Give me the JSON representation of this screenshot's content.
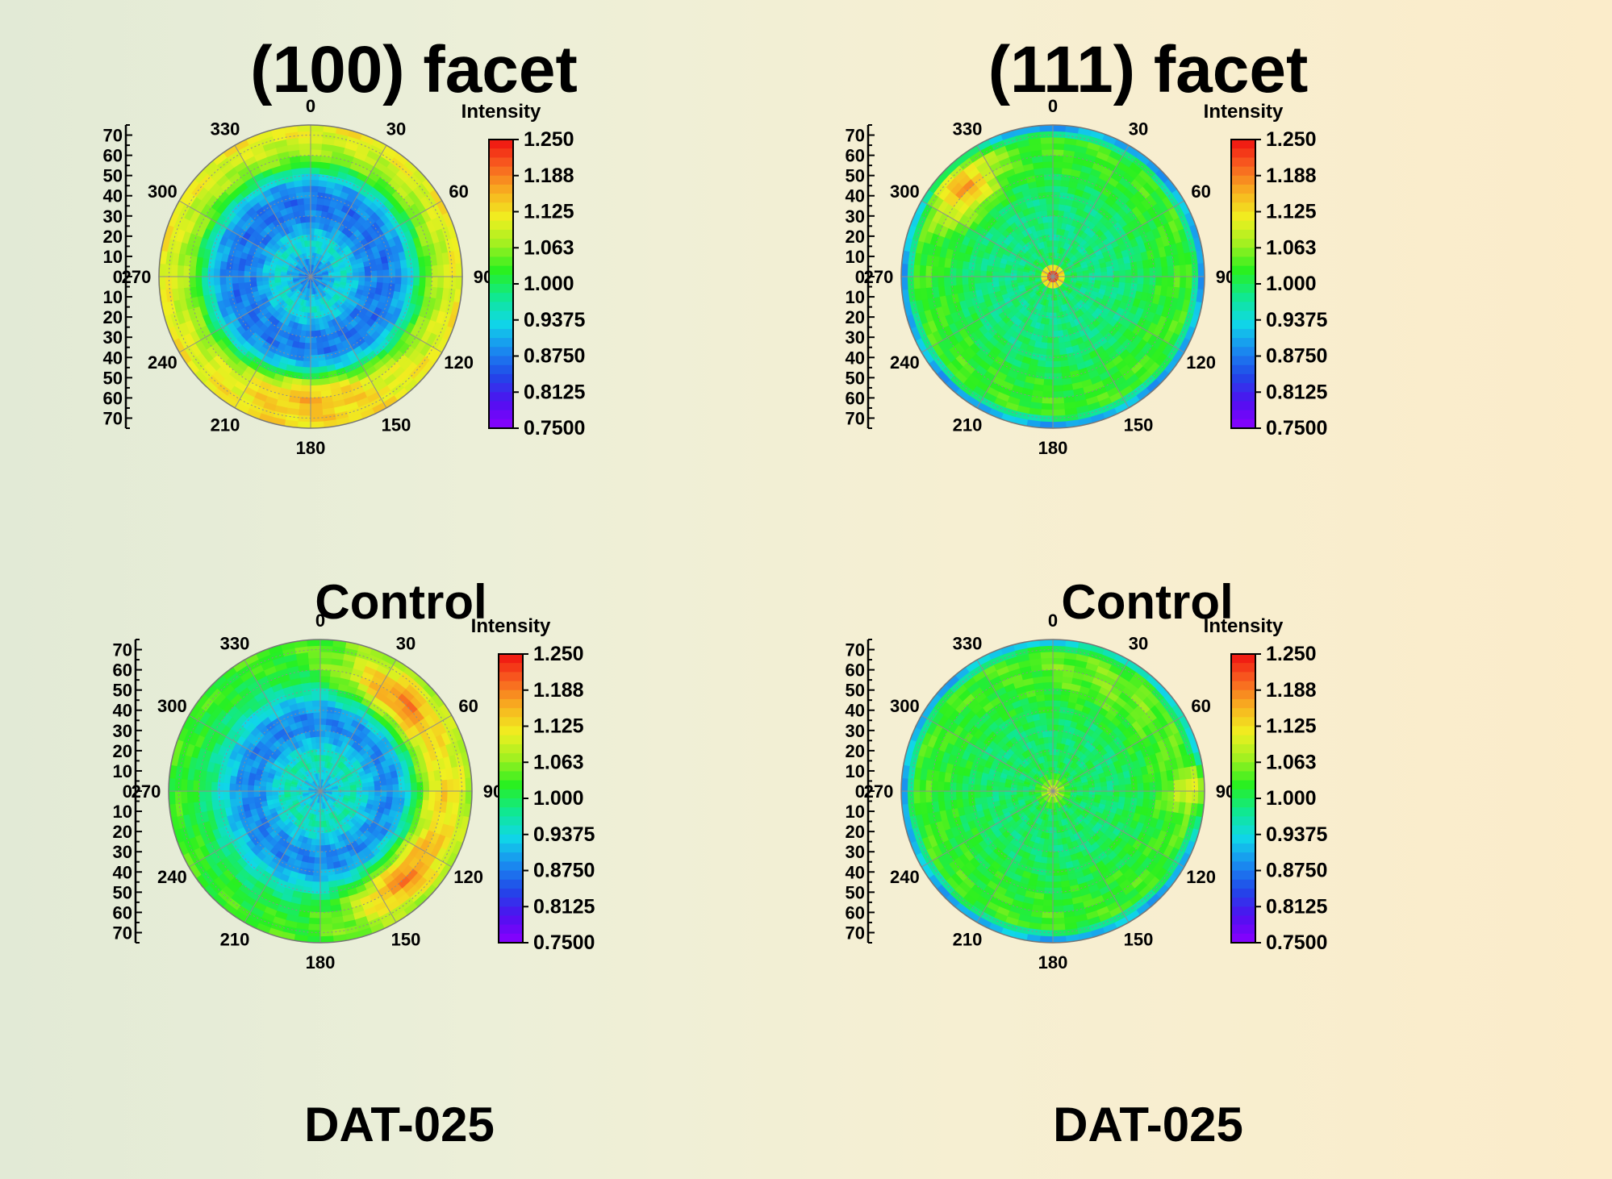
{
  "titles": {
    "left": "(100) facet",
    "right": "(111) facet"
  },
  "colors": {
    "scale": [
      "#8a00ff",
      "#5010f0",
      "#2048e8",
      "#1a8cf0",
      "#10d8e8",
      "#10e890",
      "#28f020",
      "#a0f020",
      "#f0f020",
      "#f8b020",
      "#f86020",
      "#f01010"
    ],
    "grid": "#8e8e8e"
  },
  "chart_data": [
    {
      "type": "heatmap",
      "projection": "polar",
      "facet": "(100) facet",
      "caption": "Control",
      "colorbar_title": "Intensity",
      "colorbar_ticks": [
        "1.250",
        "1.188",
        "1.125",
        "1.063",
        "1.000",
        "0.9375",
        "0.8750",
        "0.8125",
        "0.7500"
      ],
      "clim": [
        0.75,
        1.25
      ],
      "angle_ticks": [
        "0",
        "30",
        "60",
        "90",
        "120",
        "150",
        "180",
        "210",
        "240",
        "270",
        "300",
        "330"
      ],
      "radial_ticks": [
        "70",
        "60",
        "50",
        "40",
        "30",
        "20",
        "10",
        "0",
        "10",
        "20",
        "30",
        "40",
        "50",
        "60",
        "70"
      ],
      "rlim": [
        0,
        75
      ],
      "radial_profile": [
        {
          "r": 0,
          "value": 0.87
        },
        {
          "r": 8,
          "value": 0.9
        },
        {
          "r": 16,
          "value": 0.95
        },
        {
          "r": 22,
          "value": 0.92
        },
        {
          "r": 28,
          "value": 0.88
        },
        {
          "r": 38,
          "value": 0.87
        },
        {
          "r": 46,
          "value": 0.9
        },
        {
          "r": 52,
          "value": 0.97
        },
        {
          "r": 58,
          "value": 1.05
        },
        {
          "r": 66,
          "value": 1.09
        },
        {
          "r": 75,
          "value": 1.12
        }
      ],
      "hot_spots": [
        {
          "theta": 180,
          "r": 62,
          "value": 1.15,
          "width": 28
        }
      ]
    },
    {
      "type": "heatmap",
      "projection": "polar",
      "facet": "(111) facet",
      "caption": "Control",
      "colorbar_title": "Intensity",
      "colorbar_ticks": [
        "1.250",
        "1.188",
        "1.125",
        "1.063",
        "1.000",
        "0.9375",
        "0.8750",
        "0.8125",
        "0.7500"
      ],
      "clim": [
        0.75,
        1.25
      ],
      "angle_ticks": [
        "0",
        "30",
        "60",
        "90",
        "120",
        "150",
        "180",
        "210",
        "240",
        "270",
        "300",
        "330"
      ],
      "radial_ticks": [
        "70",
        "60",
        "50",
        "40",
        "30",
        "20",
        "10",
        "0",
        "10",
        "20",
        "30",
        "40",
        "50",
        "60",
        "70"
      ],
      "rlim": [
        0,
        75
      ],
      "radial_profile": [
        {
          "r": 0,
          "value": 1.24
        },
        {
          "r": 3,
          "value": 1.2
        },
        {
          "r": 7,
          "value": 1.0
        },
        {
          "r": 20,
          "value": 0.98
        },
        {
          "r": 40,
          "value": 0.99
        },
        {
          "r": 55,
          "value": 1.02
        },
        {
          "r": 68,
          "value": 1.03
        },
        {
          "r": 72,
          "value": 0.95
        },
        {
          "r": 75,
          "value": 0.86
        }
      ],
      "hot_spots": [
        {
          "theta": 315,
          "r": 62,
          "value": 1.16,
          "width": 12
        }
      ]
    },
    {
      "type": "heatmap",
      "projection": "polar",
      "facet": "(100) facet",
      "caption": "DAT-025",
      "colorbar_title": "Intensity",
      "colorbar_ticks": [
        "1.250",
        "1.188",
        "1.125",
        "1.063",
        "1.000",
        "0.9375",
        "0.8750",
        "0.8125",
        "0.7500"
      ],
      "clim": [
        0.75,
        1.25
      ],
      "angle_ticks": [
        "0",
        "30",
        "60",
        "90",
        "120",
        "150",
        "180",
        "210",
        "240",
        "270",
        "300",
        "330"
      ],
      "radial_ticks": [
        "70",
        "60",
        "50",
        "40",
        "30",
        "20",
        "10",
        "0",
        "10",
        "20",
        "30",
        "40",
        "50",
        "60",
        "70"
      ],
      "rlim": [
        0,
        75
      ],
      "radial_profile": [
        {
          "r": 0,
          "value": 0.9
        },
        {
          "r": 8,
          "value": 0.93
        },
        {
          "r": 16,
          "value": 0.97
        },
        {
          "r": 24,
          "value": 0.92
        },
        {
          "r": 32,
          "value": 0.88
        },
        {
          "r": 40,
          "value": 0.89
        },
        {
          "r": 48,
          "value": 0.94
        },
        {
          "r": 56,
          "value": 0.99
        },
        {
          "r": 66,
          "value": 1.02
        },
        {
          "r": 75,
          "value": 1.03
        }
      ],
      "hot_spots": [
        {
          "theta": 45,
          "r": 60,
          "value": 1.19,
          "width": 24
        },
        {
          "theta": 90,
          "r": 62,
          "value": 1.12,
          "width": 22
        },
        {
          "theta": 135,
          "r": 60,
          "value": 1.18,
          "width": 22
        }
      ]
    },
    {
      "type": "heatmap",
      "projection": "polar",
      "facet": "(111) facet",
      "caption": "DAT-025",
      "colorbar_title": "Intensity",
      "colorbar_ticks": [
        "1.250",
        "1.188",
        "1.125",
        "1.063",
        "1.000",
        "0.9375",
        "0.8750",
        "0.8125",
        "0.7500"
      ],
      "clim": [
        0.75,
        1.25
      ],
      "angle_ticks": [
        "0",
        "30",
        "60",
        "90",
        "120",
        "150",
        "180",
        "210",
        "240",
        "270",
        "300",
        "330"
      ],
      "radial_ticks": [
        "70",
        "60",
        "50",
        "40",
        "30",
        "20",
        "10",
        "0",
        "10",
        "20",
        "30",
        "40",
        "50",
        "60",
        "70"
      ],
      "rlim": [
        0,
        75
      ],
      "radial_profile": [
        {
          "r": 0,
          "value": 1.12
        },
        {
          "r": 4,
          "value": 1.06
        },
        {
          "r": 10,
          "value": 1.0
        },
        {
          "r": 30,
          "value": 0.99
        },
        {
          "r": 55,
          "value": 1.02
        },
        {
          "r": 68,
          "value": 1.03
        },
        {
          "r": 72,
          "value": 0.95
        },
        {
          "r": 75,
          "value": 0.87
        }
      ],
      "hot_spots": [
        {
          "theta": 90,
          "r": 70,
          "value": 1.1,
          "width": 8
        },
        {
          "theta": 30,
          "r": 60,
          "value": 1.05,
          "width": 30
        }
      ]
    }
  ]
}
